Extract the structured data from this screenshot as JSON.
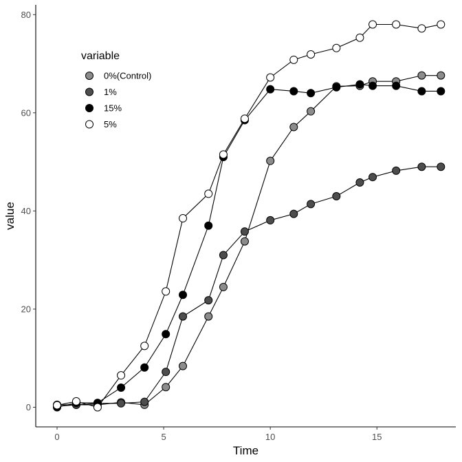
{
  "chart_data": {
    "type": "line",
    "title": "",
    "xlabel": "Time",
    "ylabel": "value",
    "xlim": [
      -1.0,
      18.7
    ],
    "ylim": [
      -4.0,
      82.0
    ],
    "x_ticks": [
      0,
      5,
      10,
      15
    ],
    "y_ticks": [
      0,
      20,
      40,
      60,
      80
    ],
    "grid": false,
    "legend": {
      "title": "variable",
      "placement": "top-left"
    },
    "series": [
      {
        "name": "0%(Control)",
        "color": "#8c8c8c",
        "x": [
          0,
          0.9,
          1.9,
          3.0,
          4.1,
          5.1,
          5.9,
          7.1,
          7.8,
          8.8,
          10.0,
          11.1,
          11.9,
          13.1,
          14.2,
          14.8,
          15.9,
          17.1,
          18.0
        ],
        "values": [
          0.5,
          0.5,
          0.5,
          1.0,
          0.5,
          4.1,
          8.4,
          18.5,
          24.5,
          33.8,
          50.2,
          57.1,
          60.3,
          65.4,
          65.5,
          66.4,
          66.4,
          67.6,
          67.6
        ]
      },
      {
        "name": "1%",
        "color": "#4d4d4d",
        "x": [
          0,
          0.9,
          1.9,
          3.0,
          4.1,
          5.1,
          5.9,
          7.1,
          7.8,
          8.8,
          10.0,
          11.1,
          11.9,
          13.1,
          14.2,
          14.8,
          15.9,
          17.1,
          18.0
        ],
        "values": [
          0.2,
          0.5,
          0.8,
          0.8,
          1.1,
          7.2,
          18.5,
          21.8,
          31.0,
          35.8,
          38.1,
          39.4,
          41.4,
          43.0,
          45.8,
          46.9,
          48.2,
          49.0,
          49.0
        ]
      },
      {
        "name": "15%",
        "color": "#000000",
        "x": [
          0,
          0.9,
          1.9,
          3.0,
          4.1,
          5.1,
          5.9,
          7.1,
          7.8,
          8.8,
          10.0,
          11.1,
          11.9,
          13.1,
          14.2,
          14.8,
          15.9,
          17.1,
          18.0
        ],
        "values": [
          0.0,
          0.9,
          0.9,
          4.0,
          8.1,
          14.9,
          22.9,
          37.0,
          51.0,
          58.5,
          64.8,
          64.4,
          64.0,
          65.2,
          65.8,
          65.5,
          65.5,
          64.4,
          64.4
        ]
      },
      {
        "name": "5%",
        "color": "#ffffff",
        "x": [
          0,
          0.9,
          1.9,
          3.0,
          4.1,
          5.1,
          5.9,
          7.1,
          7.8,
          8.8,
          10.0,
          11.1,
          11.9,
          13.1,
          14.2,
          14.8,
          15.9,
          17.1,
          18.0
        ],
        "values": [
          0.4,
          1.2,
          0.0,
          6.5,
          12.5,
          23.6,
          38.5,
          43.5,
          51.5,
          58.8,
          67.2,
          70.8,
          71.9,
          73.2,
          75.3,
          78.0,
          78.0,
          77.2,
          78.0
        ]
      }
    ]
  }
}
